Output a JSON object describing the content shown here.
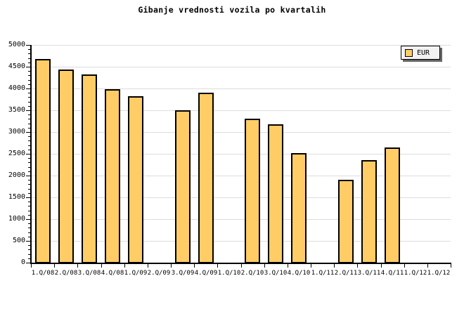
{
  "chart_data": {
    "type": "bar",
    "title": "Gibanje vrednosti vozila po kvartalih",
    "xlabel": "",
    "ylabel": "",
    "categories": [
      "1.Q/08",
      "2.Q/08",
      "3.Q/08",
      "4.Q/08",
      "1.Q/09",
      "2.Q/09",
      "3.Q/09",
      "4.Q/09",
      "1.Q/10",
      "2.Q/10",
      "3.Q/10",
      "4.Q/10",
      "1.Q/11",
      "2.Q/11",
      "3.Q/11",
      "4.Q/11",
      "1.Q/12",
      "1.Q/12"
    ],
    "values": [
      4680,
      4430,
      4320,
      3980,
      3830,
      null,
      3500,
      3910,
      null,
      3300,
      3170,
      2510,
      null,
      1900,
      2350,
      2650,
      null,
      null
    ],
    "series": [
      {
        "name": "EUR",
        "values": [
          4680,
          4430,
          4320,
          3980,
          3830,
          null,
          3500,
          3910,
          null,
          3300,
          3170,
          2510,
          null,
          1900,
          2350,
          2650,
          null,
          null
        ]
      }
    ],
    "ylim": [
      0,
      5000
    ],
    "ytick_step": 500,
    "ytick_minor_step": 100,
    "yticks": [
      0,
      500,
      1000,
      1500,
      2000,
      2500,
      3000,
      3500,
      4000,
      4500,
      5000
    ],
    "grid": "horizontal",
    "legend": {
      "label": "EUR",
      "position": "top-right"
    },
    "colors": {
      "bar_fill": "#FFCC66",
      "bar_border": "#000000",
      "grid": "#DDDDDD",
      "axis": "#000000",
      "text": "#000000",
      "legend_bg": "#F2F2F2",
      "legend_shadow": "#666666",
      "background": "#FFFFFF"
    }
  }
}
